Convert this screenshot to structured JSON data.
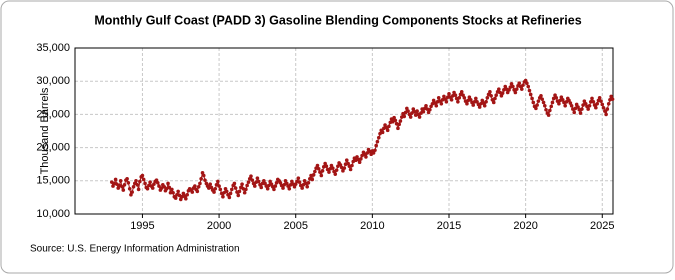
{
  "chart_data": {
    "type": "line",
    "title": "Monthly Gulf Coast (PADD 3) Gasoline Blending Components Stocks at Refineries",
    "y_label": "Thousand Barrels",
    "source": "Source: U.S. Energy Information Administration",
    "xlim": [
      1990.6,
      2025.7
    ],
    "xticks": [
      1995,
      2000,
      2005,
      2010,
      2015,
      2020,
      2025
    ],
    "ylim": [
      10000,
      35000
    ],
    "yticks": [
      {
        "value": 10000,
        "label": "10,000"
      },
      {
        "value": 15000,
        "label": "15,000"
      },
      {
        "value": 20000,
        "label": "20,000"
      },
      {
        "value": 25000,
        "label": "25,000"
      },
      {
        "value": 30000,
        "label": "30,000"
      },
      {
        "value": 35000,
        "label": "35,000"
      }
    ],
    "grid": true,
    "x": [
      1993,
      1993.08,
      1993.17,
      1993.25,
      1993.33,
      1993.42,
      1993.5,
      1993.58,
      1993.67,
      1993.75,
      1993.83,
      1993.92,
      1994,
      1994.08,
      1994.17,
      1994.25,
      1994.33,
      1994.42,
      1994.5,
      1994.58,
      1994.67,
      1994.75,
      1994.83,
      1994.92,
      1995,
      1995.08,
      1995.17,
      1995.25,
      1995.33,
      1995.42,
      1995.5,
      1995.58,
      1995.67,
      1995.75,
      1995.83,
      1995.92,
      1996,
      1996.08,
      1996.17,
      1996.25,
      1996.33,
      1996.42,
      1996.5,
      1996.58,
      1996.67,
      1996.75,
      1996.83,
      1996.92,
      1997,
      1997.08,
      1997.17,
      1997.25,
      1997.33,
      1997.42,
      1997.5,
      1997.58,
      1997.67,
      1997.75,
      1997.83,
      1997.92,
      1998,
      1998.08,
      1998.17,
      1998.25,
      1998.33,
      1998.42,
      1998.5,
      1998.58,
      1998.67,
      1998.75,
      1998.83,
      1998.92,
      1999,
      1999.08,
      1999.17,
      1999.25,
      1999.33,
      1999.42,
      1999.5,
      1999.58,
      1999.67,
      1999.75,
      1999.83,
      1999.92,
      2000,
      2000.08,
      2000.17,
      2000.25,
      2000.33,
      2000.42,
      2000.5,
      2000.58,
      2000.67,
      2000.75,
      2000.83,
      2000.92,
      2001,
      2001.08,
      2001.17,
      2001.25,
      2001.33,
      2001.42,
      2001.5,
      2001.58,
      2001.67,
      2001.75,
      2001.83,
      2001.92,
      2002,
      2002.08,
      2002.17,
      2002.25,
      2002.33,
      2002.42,
      2002.5,
      2002.58,
      2002.67,
      2002.75,
      2002.83,
      2002.92,
      2003,
      2003.08,
      2003.17,
      2003.25,
      2003.33,
      2003.42,
      2003.5,
      2003.58,
      2003.67,
      2003.75,
      2003.83,
      2003.92,
      2004,
      2004.08,
      2004.17,
      2004.25,
      2004.33,
      2004.42,
      2004.5,
      2004.58,
      2004.67,
      2004.75,
      2004.83,
      2004.92,
      2005,
      2005.08,
      2005.17,
      2005.25,
      2005.33,
      2005.42,
      2005.5,
      2005.58,
      2005.67,
      2005.75,
      2005.83,
      2005.92,
      2006,
      2006.08,
      2006.17,
      2006.25,
      2006.33,
      2006.42,
      2006.5,
      2006.58,
      2006.67,
      2006.75,
      2006.83,
      2006.92,
      2007,
      2007.08,
      2007.17,
      2007.25,
      2007.33,
      2007.42,
      2007.5,
      2007.58,
      2007.67,
      2007.75,
      2007.83,
      2007.92,
      2008,
      2008.08,
      2008.17,
      2008.25,
      2008.33,
      2008.42,
      2008.5,
      2008.58,
      2008.67,
      2008.75,
      2008.83,
      2008.92,
      2009,
      2009.08,
      2009.17,
      2009.25,
      2009.33,
      2009.42,
      2009.5,
      2009.58,
      2009.67,
      2009.75,
      2009.83,
      2009.92,
      2010,
      2010.08,
      2010.17,
      2010.25,
      2010.33,
      2010.42,
      2010.5,
      2010.58,
      2010.67,
      2010.75,
      2010.83,
      2010.92,
      2011,
      2011.08,
      2011.17,
      2011.25,
      2011.33,
      2011.42,
      2011.5,
      2011.58,
      2011.67,
      2011.75,
      2011.83,
      2011.92,
      2012,
      2012.08,
      2012.17,
      2012.25,
      2012.33,
      2012.42,
      2012.5,
      2012.58,
      2012.67,
      2012.75,
      2012.83,
      2012.92,
      2013,
      2013.08,
      2013.17,
      2013.25,
      2013.33,
      2013.42,
      2013.5,
      2013.58,
      2013.67,
      2013.75,
      2013.83,
      2013.92,
      2014,
      2014.08,
      2014.17,
      2014.25,
      2014.33,
      2014.42,
      2014.5,
      2014.58,
      2014.67,
      2014.75,
      2014.83,
      2014.92,
      2015,
      2015.08,
      2015.17,
      2015.25,
      2015.33,
      2015.42,
      2015.5,
      2015.58,
      2015.67,
      2015.75,
      2015.83,
      2015.92,
      2016,
      2016.08,
      2016.17,
      2016.25,
      2016.33,
      2016.42,
      2016.5,
      2016.58,
      2016.67,
      2016.75,
      2016.83,
      2016.92,
      2017,
      2017.08,
      2017.17,
      2017.25,
      2017.33,
      2017.42,
      2017.5,
      2017.58,
      2017.67,
      2017.75,
      2017.83,
      2017.92,
      2018,
      2018.08,
      2018.17,
      2018.25,
      2018.33,
      2018.42,
      2018.5,
      2018.58,
      2018.67,
      2018.75,
      2018.83,
      2018.92,
      2019,
      2019.08,
      2019.17,
      2019.25,
      2019.33,
      2019.42,
      2019.5,
      2019.58,
      2019.67,
      2019.75,
      2019.83,
      2019.92,
      2020,
      2020.08,
      2020.17,
      2020.25,
      2020.33,
      2020.42,
      2020.5,
      2020.58,
      2020.67,
      2020.75,
      2020.83,
      2020.92,
      2021,
      2021.08,
      2021.17,
      2021.25,
      2021.33,
      2021.42,
      2021.5,
      2021.58,
      2021.67,
      2021.75,
      2021.83,
      2021.92,
      2022,
      2022.08,
      2022.17,
      2022.25,
      2022.33,
      2022.42,
      2022.5,
      2022.58,
      2022.67,
      2022.75,
      2022.83,
      2022.92,
      2023,
      2023.08,
      2023.17,
      2023.25,
      2023.33,
      2023.42,
      2023.5,
      2023.58,
      2023.67,
      2023.75,
      2023.83,
      2023.92,
      2024,
      2024.08,
      2024.17,
      2024.25,
      2024.33,
      2024.42,
      2024.5,
      2024.58,
      2024.67,
      2024.75,
      2024.83,
      2024.92,
      2025,
      2025.08,
      2025.17,
      2025.25,
      2025.33,
      2025.42,
      2025.5,
      2025.58,
      2025.67
    ],
    "series": [
      {
        "color": "#a31515",
        "values": [
          14800,
          14200,
          14600,
          15200,
          14500,
          13900,
          14300,
          15000,
          14100,
          13600,
          14400,
          15100,
          15300,
          14700,
          13800,
          12900,
          13300,
          14100,
          14600,
          15000,
          14400,
          13700,
          14900,
          15600,
          15800,
          15200,
          14600,
          14000,
          13800,
          14300,
          14800,
          14200,
          13900,
          14500,
          14900,
          15100,
          14700,
          14200,
          13600,
          13900,
          14400,
          14100,
          13500,
          13800,
          14600,
          14000,
          13200,
          13700,
          13200,
          12600,
          12400,
          12900,
          13400,
          12800,
          12200,
          12600,
          13100,
          12700,
          12300,
          12900,
          13500,
          13800,
          13600,
          13300,
          13900,
          14200,
          13700,
          13400,
          14100,
          14600,
          15300,
          16200,
          15800,
          15100,
          14600,
          14200,
          13900,
          14500,
          14000,
          13600,
          13300,
          13800,
          14400,
          14900,
          14200,
          13700,
          13100,
          12600,
          13200,
          13800,
          13400,
          12900,
          12500,
          13100,
          13700,
          14300,
          14600,
          13900,
          13300,
          12800,
          13400,
          14000,
          14500,
          13800,
          13200,
          13700,
          14300,
          14800,
          15300,
          15700,
          15100,
          14600,
          14200,
          14800,
          15400,
          14900,
          14400,
          14000,
          14600,
          15000,
          14600,
          14200,
          13800,
          14300,
          14900,
          14500,
          14100,
          13700,
          14200,
          14700,
          15200,
          15000,
          14700,
          14300,
          13900,
          14400,
          15000,
          14600,
          14200,
          13800,
          14400,
          14900,
          14500,
          14100,
          14500,
          14900,
          15400,
          14800,
          14300,
          13900,
          14400,
          15000,
          14600,
          14100,
          14700,
          15300,
          15800,
          15200,
          15900,
          16400,
          16900,
          17300,
          16800,
          16300,
          15800,
          16500,
          17100,
          17600,
          17200,
          16700,
          16300,
          16800,
          17300,
          16900,
          16400,
          16000,
          16600,
          17200,
          17700,
          17400,
          17000,
          16500,
          16900,
          17500,
          18100,
          17600,
          17200,
          16700,
          17300,
          17900,
          18400,
          18100,
          18600,
          18200,
          17800,
          18300,
          18800,
          19300,
          19000,
          18600,
          19200,
          19700,
          19400,
          19000,
          19500,
          19200,
          19600,
          20300,
          20900,
          21500,
          22100,
          22600,
          22300,
          22900,
          23400,
          23000,
          22600,
          23200,
          23800,
          24300,
          23900,
          24500,
          24100,
          23600,
          22900,
          23500,
          24000,
          24600,
          25100,
          24700,
          25300,
          25900,
          25500,
          25000,
          24600,
          25200,
          25800,
          25400,
          24900,
          25500,
          25000,
          24600,
          25200,
          25800,
          25400,
          25900,
          26300,
          25800,
          25300,
          25700,
          26200,
          26600,
          27100,
          26700,
          26300,
          26900,
          27500,
          27000,
          26600,
          27200,
          27700,
          27300,
          26900,
          27600,
          28100,
          27600,
          27200,
          27800,
          28300,
          27900,
          27400,
          26900,
          27500,
          28000,
          28400,
          27900,
          27500,
          27000,
          26600,
          27100,
          27600,
          27200,
          26800,
          26400,
          26900,
          27400,
          26900,
          26500,
          26100,
          26600,
          27100,
          26700,
          26300,
          26900,
          27500,
          28000,
          28400,
          27800,
          27200,
          26800,
          27400,
          27900,
          28400,
          28800,
          28300,
          27800,
          28200,
          28700,
          29200,
          28800,
          28300,
          28700,
          29100,
          29600,
          29200,
          28700,
          28300,
          28800,
          29300,
          29700,
          29200,
          28800,
          29400,
          29900,
          30100,
          29700,
          29200,
          28600,
          28000,
          27400,
          26800,
          26200,
          25900,
          26400,
          27000,
          27500,
          27800,
          27300,
          26800,
          26300,
          25700,
          25200,
          24900,
          25600,
          26200,
          26800,
          27400,
          27900,
          27500,
          27000,
          26600,
          27100,
          27600,
          27200,
          26800,
          26300,
          26900,
          27400,
          27100,
          26700,
          26300,
          25800,
          25300,
          25900,
          26500,
          26100,
          25700,
          25200,
          25800,
          26400,
          27000,
          26600,
          26200,
          25800,
          26300,
          26900,
          27400,
          26900,
          26400,
          26000,
          26600,
          27100,
          27500,
          27000,
          26500,
          26000,
          25500,
          25000,
          25800,
          26600,
          27200,
          27700,
          27300
        ]
      }
    ]
  }
}
